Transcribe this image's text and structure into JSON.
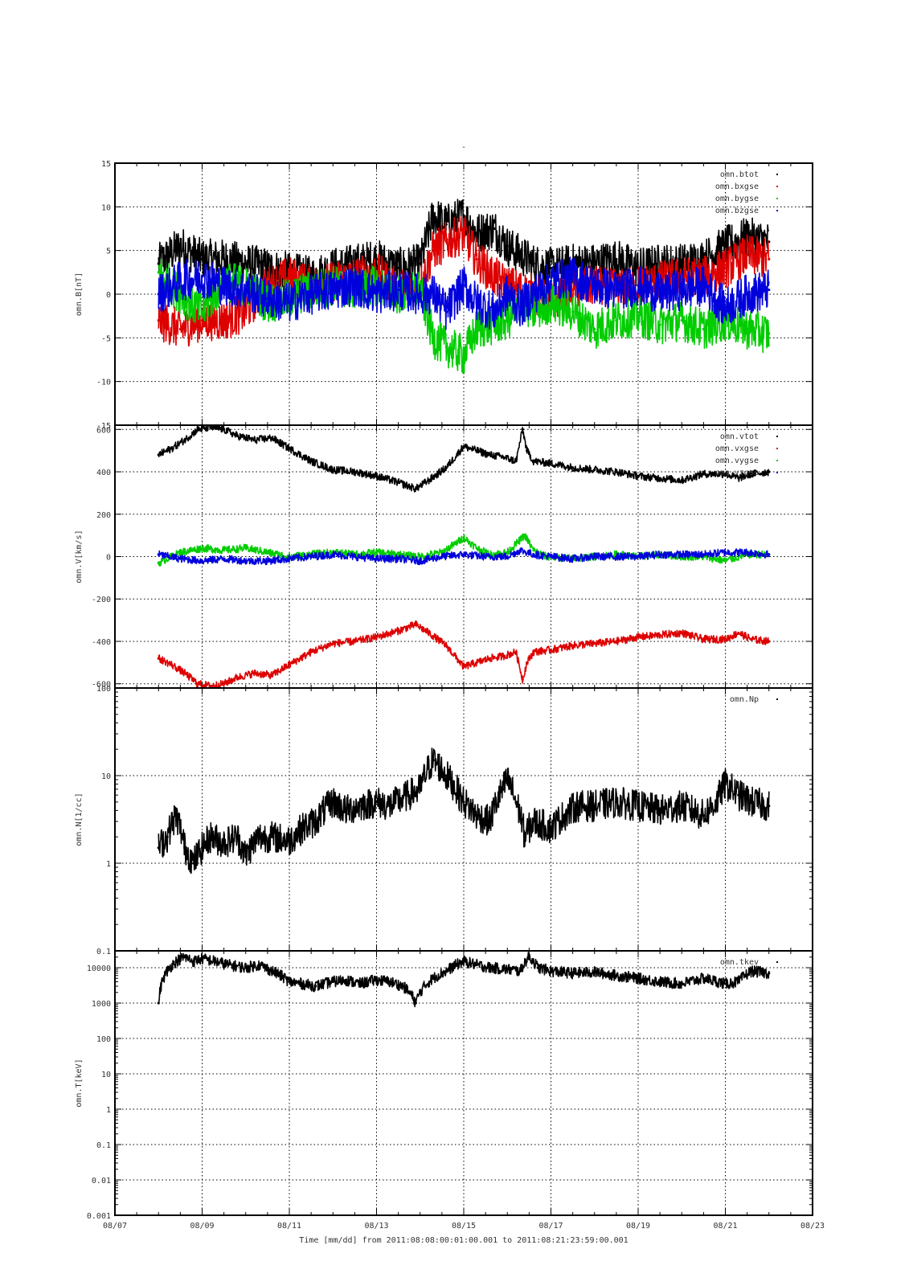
{
  "page": {
    "title": "-",
    "xaxis_caption": "Time [mm/dd]  from 2011:08:08:00:01:00.001  to  2011:08:21:23:59:00.001"
  },
  "chart_data": [
    {
      "type": "scatter",
      "ylabel": "omn.B[nT]",
      "ylim": [
        -15,
        15
      ],
      "yscale": "linear",
      "yticks": [
        -15,
        -10,
        -5,
        0,
        5,
        10,
        15
      ],
      "ytick_labels": [
        "-15",
        "-10",
        "-5",
        "0",
        "5",
        "10",
        "15"
      ],
      "grid": true,
      "legend_position": "top-right",
      "x_unit": "day of August 2011",
      "series": [
        {
          "name": "omn.btot",
          "color": "#000000",
          "x": [
            8.0,
            8.5,
            9.0,
            9.5,
            10.0,
            10.5,
            11.0,
            11.5,
            12.0,
            12.5,
            13.0,
            13.5,
            14.0,
            14.3,
            14.6,
            15.0,
            15.3,
            15.7,
            16.0,
            16.3,
            16.6,
            17.0,
            17.5,
            18.0,
            18.5,
            19.0,
            19.5,
            20.0,
            20.5,
            21.0,
            21.5,
            22.0
          ],
          "y": [
            3.5,
            5.5,
            4.0,
            4.0,
            3.5,
            3.0,
            2.5,
            2.0,
            3.0,
            3.5,
            4.0,
            3.0,
            3.5,
            9.0,
            8.0,
            9.0,
            7.0,
            7.5,
            5.5,
            4.5,
            3.5,
            3.0,
            3.5,
            3.5,
            4.0,
            3.0,
            3.5,
            3.5,
            4.0,
            5.5,
            6.5,
            6.0
          ]
        },
        {
          "name": "omn.bxgse",
          "color": "#dd0000",
          "x": [
            8.0,
            8.5,
            9.0,
            9.5,
            10.0,
            10.5,
            11.0,
            11.5,
            12.0,
            12.5,
            13.0,
            13.5,
            14.0,
            14.3,
            14.6,
            15.0,
            15.3,
            15.7,
            16.0,
            16.3,
            16.6,
            17.0,
            17.5,
            18.0,
            18.5,
            19.0,
            19.5,
            20.0,
            20.5,
            21.0,
            21.5,
            22.0
          ],
          "y": [
            -3.0,
            -4.0,
            -3.0,
            -3.0,
            -2.0,
            1.0,
            2.0,
            1.0,
            1.5,
            2.0,
            2.5,
            0.5,
            1.0,
            5.0,
            6.0,
            7.0,
            4.0,
            2.0,
            1.0,
            0.5,
            0.0,
            -1.0,
            0.5,
            1.0,
            0.5,
            1.0,
            1.5,
            2.0,
            2.0,
            3.0,
            4.5,
            4.0
          ]
        },
        {
          "name": "omn.bygse",
          "color": "#00cc00",
          "x": [
            8.0,
            8.5,
            9.0,
            9.5,
            10.0,
            10.5,
            11.0,
            11.5,
            12.0,
            12.5,
            13.0,
            13.5,
            14.0,
            14.3,
            14.6,
            15.0,
            15.3,
            15.7,
            16.0,
            16.3,
            16.6,
            17.0,
            17.5,
            18.0,
            18.5,
            19.0,
            19.5,
            20.0,
            20.5,
            21.0,
            21.5,
            22.0
          ],
          "y": [
            2.5,
            0.0,
            -2.0,
            1.5,
            1.0,
            -1.0,
            -0.5,
            0.5,
            1.0,
            0.5,
            1.0,
            0.0,
            0.5,
            -5.0,
            -6.0,
            -7.0,
            -4.0,
            -3.5,
            -3.0,
            -1.0,
            -2.0,
            -1.0,
            -2.0,
            -4.0,
            -3.0,
            -2.5,
            -3.5,
            -3.0,
            -4.0,
            -3.0,
            -4.0,
            -4.5
          ]
        },
        {
          "name": "omn.bzgse",
          "color": "#0000dd",
          "x": [
            8.0,
            8.5,
            9.0,
            9.5,
            10.0,
            10.5,
            11.0,
            11.5,
            12.0,
            12.5,
            13.0,
            13.5,
            14.0,
            14.3,
            14.6,
            15.0,
            15.3,
            15.7,
            16.0,
            16.3,
            16.6,
            17.0,
            17.5,
            18.0,
            18.5,
            19.0,
            19.5,
            20.0,
            20.5,
            21.0,
            21.5,
            22.0
          ],
          "y": [
            0.0,
            1.5,
            2.0,
            1.0,
            0.5,
            -0.5,
            -1.0,
            0.0,
            0.5,
            1.0,
            0.0,
            0.5,
            0.0,
            0.0,
            -2.0,
            1.0,
            -1.0,
            -2.0,
            0.0,
            -1.5,
            0.0,
            1.5,
            2.0,
            1.0,
            0.5,
            1.0,
            0.0,
            0.5,
            1.0,
            -1.5,
            0.0,
            0.5
          ]
        }
      ]
    },
    {
      "type": "scatter",
      "ylabel": "omn.V[km/s]",
      "ylim": [
        -620,
        620
      ],
      "yscale": "linear",
      "yticks": [
        -600,
        -400,
        -200,
        0,
        200,
        400,
        600
      ],
      "ytick_labels": [
        "-600",
        "-400",
        "-200",
        "0",
        "200",
        "400",
        "600"
      ],
      "grid": true,
      "legend_position": "top-right",
      "x_unit": "day of August 2011",
      "series": [
        {
          "name": "omn.vtot",
          "color": "#000000",
          "x": [
            8.0,
            8.3,
            8.6,
            8.9,
            9.2,
            9.5,
            9.8,
            10.2,
            10.6,
            11.0,
            11.5,
            12.0,
            12.5,
            13.0,
            13.5,
            13.9,
            14.2,
            14.6,
            15.0,
            15.3,
            15.6,
            15.9,
            16.2,
            16.35,
            16.45,
            16.6,
            17.0,
            17.5,
            18.0,
            18.5,
            19.0,
            19.5,
            20.0,
            20.5,
            21.0,
            21.3,
            21.6,
            22.0
          ],
          "y": [
            480,
            510,
            550,
            600,
            610,
            600,
            570,
            550,
            560,
            510,
            450,
            410,
            400,
            380,
            350,
            320,
            360,
            420,
            520,
            500,
            480,
            470,
            450,
            600,
            500,
            450,
            440,
            420,
            410,
            400,
            380,
            370,
            360,
            390,
            390,
            370,
            390,
            400
          ]
        },
        {
          "name": "omn.vxgse",
          "color": "#dd0000",
          "x": [
            8.0,
            8.3,
            8.6,
            8.9,
            9.2,
            9.5,
            9.8,
            10.2,
            10.6,
            11.0,
            11.5,
            12.0,
            12.5,
            13.0,
            13.5,
            13.9,
            14.2,
            14.6,
            15.0,
            15.3,
            15.6,
            15.9,
            16.2,
            16.35,
            16.45,
            16.6,
            17.0,
            17.5,
            18.0,
            18.5,
            19.0,
            19.5,
            20.0,
            20.5,
            21.0,
            21.3,
            21.6,
            22.0
          ],
          "y": [
            -480,
            -510,
            -550,
            -600,
            -610,
            -600,
            -570,
            -550,
            -560,
            -510,
            -450,
            -410,
            -400,
            -380,
            -350,
            -320,
            -360,
            -420,
            -520,
            -500,
            -480,
            -470,
            -450,
            -580,
            -500,
            -450,
            -440,
            -420,
            -410,
            -400,
            -380,
            -370,
            -360,
            -390,
            -390,
            -360,
            -390,
            -400
          ]
        },
        {
          "name": "omn.vygse",
          "color": "#00cc00",
          "x": [
            8.0,
            8.5,
            9.0,
            9.5,
            10.0,
            10.5,
            11.0,
            11.5,
            12.0,
            12.5,
            13.0,
            13.5,
            14.0,
            14.5,
            14.8,
            15.0,
            15.3,
            15.6,
            16.0,
            16.4,
            16.6,
            16.9,
            17.5,
            18.0,
            18.5,
            19.0,
            19.5,
            20.0,
            20.5,
            21.0,
            21.5,
            22.0
          ],
          "y": [
            -30,
            20,
            40,
            30,
            40,
            20,
            0,
            10,
            20,
            10,
            20,
            10,
            0,
            20,
            60,
            90,
            40,
            10,
            20,
            100,
            30,
            0,
            -10,
            0,
            10,
            0,
            10,
            0,
            0,
            -20,
            10,
            10
          ]
        },
        {
          "name": "omn.vzgse",
          "color": "#0000dd",
          "x": [
            8.0,
            8.5,
            9.0,
            9.5,
            10.0,
            10.5,
            11.0,
            11.5,
            12.0,
            12.5,
            13.0,
            13.5,
            14.0,
            14.5,
            15.0,
            15.5,
            16.0,
            16.3,
            16.6,
            17.0,
            17.5,
            18.0,
            18.5,
            19.0,
            19.5,
            20.0,
            20.5,
            21.0,
            21.5,
            22.0
          ],
          "y": [
            10,
            -10,
            -20,
            -10,
            -20,
            -20,
            -10,
            0,
            10,
            0,
            -10,
            -10,
            -20,
            0,
            10,
            0,
            0,
            30,
            10,
            0,
            -10,
            0,
            0,
            0,
            10,
            10,
            10,
            20,
            20,
            10
          ]
        }
      ]
    },
    {
      "type": "scatter",
      "ylabel": "omn.N[1/cc]",
      "ylim": [
        0.1,
        100
      ],
      "yscale": "log",
      "yticks": [
        0.1,
        1,
        10,
        100
      ],
      "ytick_labels": [
        "0.1",
        "1",
        "10",
        "100"
      ],
      "grid": true,
      "legend_position": "top-right",
      "x_unit": "day of August 2011",
      "series": [
        {
          "name": "omn.Np",
          "color": "#000000",
          "x": [
            8.0,
            8.2,
            8.4,
            8.6,
            8.8,
            9.0,
            9.2,
            9.5,
            9.8,
            10.0,
            10.3,
            10.6,
            11.0,
            11.3,
            11.6,
            12.0,
            12.3,
            12.6,
            13.0,
            13.3,
            13.6,
            14.0,
            14.3,
            14.6,
            14.9,
            15.0,
            15.3,
            15.6,
            15.9,
            16.0,
            16.2,
            16.4,
            16.6,
            17.0,
            17.3,
            17.6,
            18.0,
            18.5,
            19.0,
            19.5,
            20.0,
            20.5,
            20.8,
            21.0,
            21.3,
            21.6,
            22.0
          ],
          "y": [
            1.5,
            2.0,
            3.5,
            1.5,
            1.0,
            1.5,
            2.0,
            1.7,
            2.0,
            1.2,
            2.0,
            2.0,
            1.8,
            2.5,
            3.0,
            5.0,
            4.0,
            4.5,
            5.0,
            4.5,
            5.5,
            7.0,
            15,
            10,
            6.0,
            5.0,
            3.5,
            3.0,
            7.0,
            9.0,
            5.0,
            2.0,
            3.0,
            2.5,
            3.5,
            4.5,
            4.5,
            5.0,
            4.5,
            4.0,
            4.5,
            3.5,
            5.0,
            8.0,
            6.0,
            5.0,
            4.5
          ]
        }
      ]
    },
    {
      "type": "scatter",
      "ylabel": "omn.T[keV]",
      "ylim": [
        0.001,
        30000
      ],
      "yscale": "log",
      "yticks": [
        0.001,
        0.01,
        0.1,
        1,
        10,
        100,
        1000,
        10000
      ],
      "ytick_labels": [
        "0.001",
        "0.01",
        "0.1",
        "1",
        "10",
        "100",
        "1000",
        "10000"
      ],
      "grid": true,
      "legend_position": "top-right",
      "x_unit": "day of August 2011",
      "series": [
        {
          "name": "omn.tkev",
          "color": "#000000",
          "x": [
            8.0,
            8.2,
            8.4,
            8.6,
            8.8,
            9.0,
            9.3,
            9.6,
            10.0,
            10.3,
            10.6,
            11.0,
            11.3,
            11.6,
            12.0,
            12.3,
            12.6,
            13.0,
            13.3,
            13.6,
            13.9,
            14.0,
            14.3,
            14.6,
            15.0,
            15.3,
            15.6,
            16.0,
            16.3,
            16.5,
            16.7,
            17.0,
            17.5,
            18.0,
            18.5,
            19.0,
            19.5,
            20.0,
            20.5,
            21.0,
            21.3,
            21.6,
            22.0
          ],
          "y": [
            1000,
            8000,
            15000,
            20000,
            15000,
            18000,
            15000,
            12000,
            10000,
            12000,
            8000,
            4000,
            3500,
            3000,
            4000,
            4500,
            3500,
            4500,
            4000,
            3000,
            1000,
            2000,
            5000,
            8000,
            15000,
            12000,
            10000,
            9000,
            8000,
            20000,
            10000,
            8000,
            7000,
            7500,
            6000,
            5000,
            4000,
            3500,
            5000,
            3500,
            4000,
            8000,
            7000
          ]
        }
      ]
    }
  ],
  "xaxis": {
    "xlim": [
      7,
      23
    ],
    "xticks": [
      7,
      9,
      11,
      13,
      15,
      17,
      19,
      21,
      23
    ],
    "xtick_labels": [
      "08/07",
      "08/09",
      "08/11",
      "08/13",
      "08/15",
      "08/17",
      "08/19",
      "08/21",
      "08/23"
    ]
  }
}
